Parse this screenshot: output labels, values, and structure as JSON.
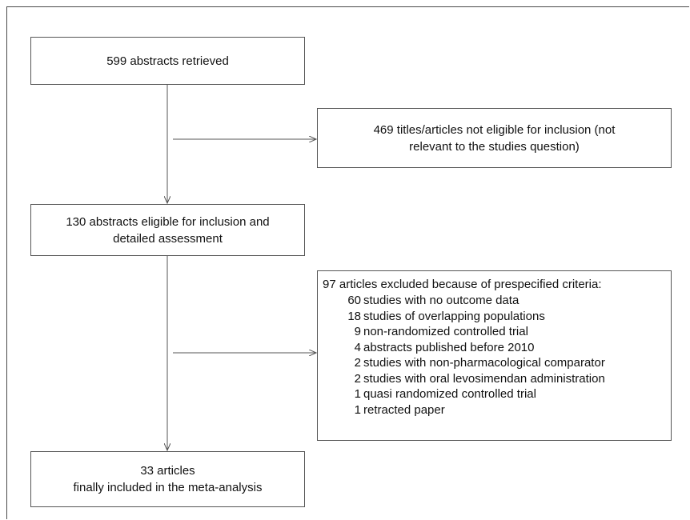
{
  "diagram": {
    "box_retrieved": {
      "text": "599 abstracts retrieved"
    },
    "box_not_eligible": {
      "lines": [
        "469 titles/articles not eligible for inclusion (not",
        "relevant to the studies question)"
      ]
    },
    "box_eligible": {
      "lines": [
        "130 abstracts eligible for inclusion and",
        "detailed assessment"
      ]
    },
    "box_excluded": {
      "title": "97 articles excluded because of prespecified criteria:",
      "items": [
        {
          "count": "60",
          "text": "studies with no outcome data"
        },
        {
          "count": "18",
          "text": "studies of overlapping populations"
        },
        {
          "count": "9",
          "text": "non-randomized controlled trial"
        },
        {
          "count": "4",
          "text": "abstracts published before 2010"
        },
        {
          "count": "2",
          "text": "studies with non-pharmacological  comparator"
        },
        {
          "count": "2",
          "text": "studies with oral levosimendan administration"
        },
        {
          "count": "1",
          "text": "quasi randomized controlled trial"
        },
        {
          "count": "1",
          "text": "retracted paper"
        }
      ]
    },
    "box_included": {
      "lines": [
        "33 articles",
        "finally included in the meta-analysis"
      ]
    },
    "colors": {
      "line": "#555555",
      "text": "#111111",
      "frame": "#4a4a4a"
    }
  }
}
